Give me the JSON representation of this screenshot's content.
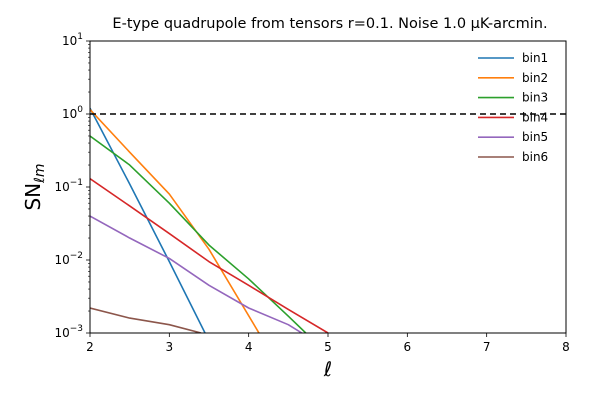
{
  "chart_data": {
    "type": "line",
    "title": "E-type quadrupole from tensors r=0.1. Noise 1.0 μK-arcmin.",
    "xlabel": "ℓ",
    "ylabel_main": "SN",
    "ylabel_sub": "ℓm",
    "xlim": [
      2,
      8
    ],
    "ylim": [
      0.001,
      10
    ],
    "yscale": "log",
    "grid": false,
    "legend_position": "top-right",
    "xticks": [
      2,
      3,
      4,
      5,
      6,
      7,
      8
    ],
    "xtick_labels": [
      "2",
      "3",
      "4",
      "5",
      "6",
      "7",
      "8"
    ],
    "yticks": [
      0.001,
      0.01,
      0.1,
      1,
      10
    ],
    "ytick_base": "10",
    "ytick_exponents": [
      "−3",
      "−2",
      "−1",
      "0",
      "1"
    ],
    "reference_line": {
      "y": 1,
      "style": "dashed",
      "color": "#000000"
    },
    "series": [
      {
        "name": "bin1",
        "color": "#1f77b4",
        "x": [
          2,
          2.5,
          3,
          3.45
        ],
        "y": [
          1.2,
          0.11,
          0.0095,
          0.001
        ]
      },
      {
        "name": "bin2",
        "color": "#ff7f0e",
        "x": [
          2,
          2.5,
          3,
          3.5,
          4.13
        ],
        "y": [
          1.15,
          0.3,
          0.08,
          0.014,
          0.001
        ]
      },
      {
        "name": "bin3",
        "color": "#2ca02c",
        "x": [
          2,
          2.5,
          3,
          3.5,
          4,
          4.5,
          4.72
        ],
        "y": [
          0.5,
          0.2,
          0.06,
          0.016,
          0.0055,
          0.0017,
          0.001
        ]
      },
      {
        "name": "bin4",
        "color": "#d62728",
        "x": [
          2,
          2.5,
          3,
          3.5,
          4,
          4.5,
          5
        ],
        "y": [
          0.13,
          0.055,
          0.023,
          0.0095,
          0.0045,
          0.0021,
          0.001
        ]
      },
      {
        "name": "bin5",
        "color": "#9467bd",
        "x": [
          2,
          2.5,
          3,
          3.5,
          4,
          4.5,
          4.67
        ],
        "y": [
          0.04,
          0.02,
          0.0105,
          0.0045,
          0.0022,
          0.0013,
          0.001
        ]
      },
      {
        "name": "bin6",
        "color": "#8c564b",
        "x": [
          2,
          2.5,
          3,
          3.4
        ],
        "y": [
          0.0022,
          0.0016,
          0.0013,
          0.001
        ]
      }
    ]
  }
}
